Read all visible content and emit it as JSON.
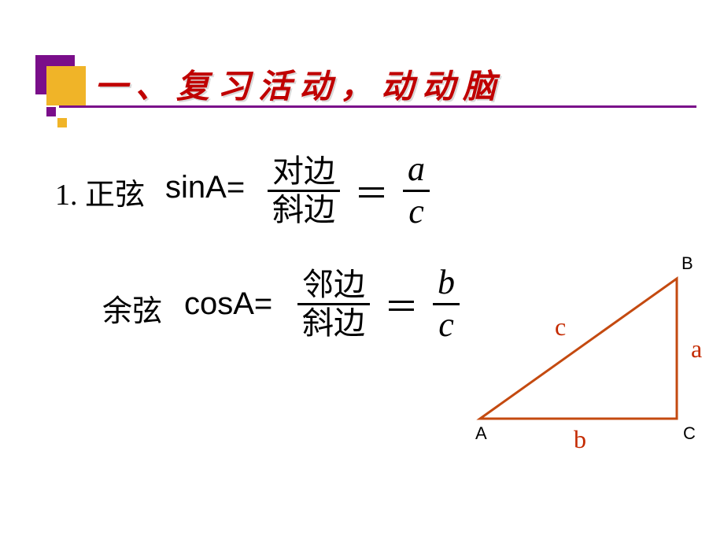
{
  "title": "一、复习活动，动动脑",
  "title_color": "#c00000",
  "title_fontsize": 42,
  "accent_purple": "#7a0e8a",
  "accent_gold": "#f0b428",
  "line1": {
    "index": "1.",
    "name": "正弦",
    "func": "sinA=",
    "frac_cn_num": "对边",
    "frac_cn_den": "斜边",
    "eq": "＝",
    "frac_it_num": "a",
    "frac_it_den": "c"
  },
  "line2": {
    "name": "余弦",
    "func": "cosA=",
    "frac_cn_num": "邻边",
    "frac_cn_den": "斜边",
    "eq": "＝",
    "frac_it_num": "b",
    "frac_it_den": "c"
  },
  "triangle": {
    "type": "diagram",
    "stroke_color": "#c44a10",
    "stroke_width": 3,
    "points": {
      "A": [
        12,
        218
      ],
      "B": [
        262,
        40
      ],
      "C": [
        262,
        218
      ]
    },
    "vertex_labels": {
      "A": "A",
      "B": "B",
      "C": "C"
    },
    "side_labels": {
      "c": "c",
      "a": "a",
      "b": "b"
    },
    "side_color": "#c42a00",
    "label_color": "#000000",
    "label_fontsize": 22,
    "side_fontsize": 32
  },
  "background_color": "#ffffff"
}
